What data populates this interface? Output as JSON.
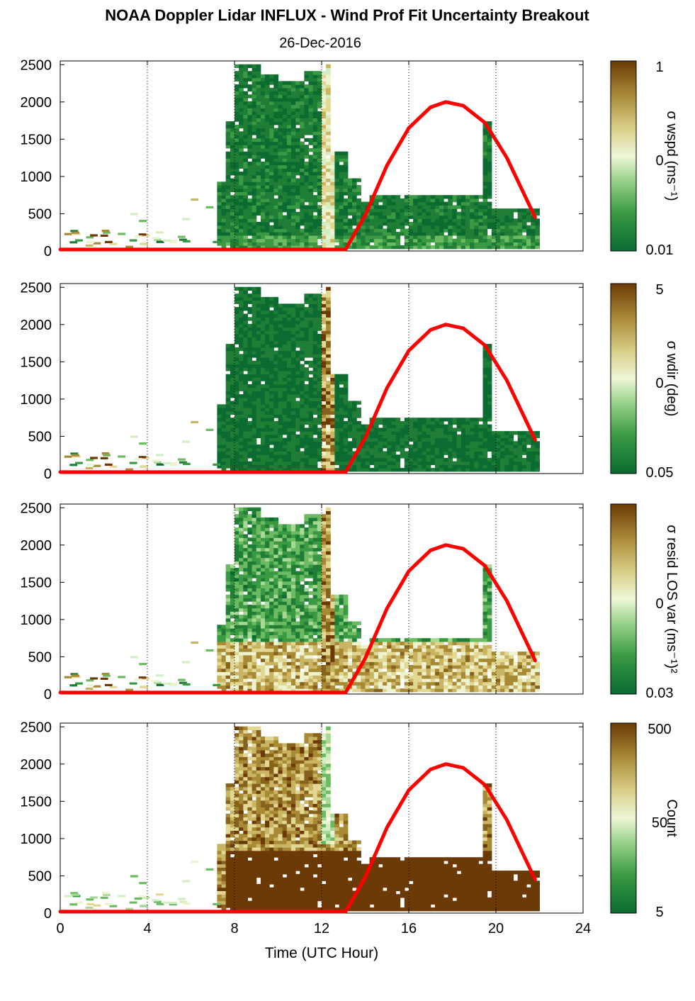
{
  "title": "NOAA Doppler Lidar INFLUX - Wind Prof Fit Uncertainty Breakout",
  "date": "26-Dec-2016",
  "colors": {
    "dark_green": "#0b6b31",
    "mid_green": "#4aa84a",
    "light_green": "#cfeec0",
    "pale": "#eef7d8",
    "tan": "#d5c377",
    "olive": "#a88a35",
    "dark_brown": "#6b3a06",
    "sun_curve": "#ff0000"
  },
  "chart_data": [
    {
      "type": "heatmap",
      "panel": "wspd",
      "xlabel": "",
      "ylabel": "",
      "xlim": [
        0,
        24
      ],
      "ylim": [
        0,
        2550
      ],
      "x_ticks": [
        "0",
        "4",
        "8",
        "12",
        "16",
        "20",
        "24"
      ],
      "y_ticks": [
        "0",
        "500",
        "1000",
        "1500",
        "2000",
        "2500"
      ],
      "colorbar": {
        "label": "σ wspd (ms⁻¹)",
        "ticks": [
          "1",
          "0",
          "0.01"
        ]
      },
      "sun_elevation_curve": {
        "x": [
          0,
          13.1,
          14,
          15,
          16,
          17,
          17.7,
          18.5,
          19.5,
          20.5,
          21.8
        ],
        "y": [
          20,
          20,
          480,
          1150,
          1650,
          1930,
          2000,
          1950,
          1720,
          1250,
          450
        ]
      }
    },
    {
      "type": "heatmap",
      "panel": "wdir",
      "xlabel": "",
      "ylabel": "",
      "xlim": [
        0,
        24
      ],
      "ylim": [
        0,
        2550
      ],
      "x_ticks": [
        "0",
        "4",
        "8",
        "12",
        "16",
        "20",
        "24"
      ],
      "y_ticks": [
        "0",
        "500",
        "1000",
        "1500",
        "2000",
        "2500"
      ],
      "colorbar": {
        "label": "σ wdir (deg)",
        "ticks": [
          "5",
          "0",
          "0.05"
        ]
      },
      "sun_elevation_curve": {
        "x": [
          0,
          13.1,
          14,
          15,
          16,
          17,
          17.7,
          18.5,
          19.5,
          20.5,
          21.8
        ],
        "y": [
          20,
          20,
          480,
          1150,
          1650,
          1930,
          2000,
          1950,
          1720,
          1250,
          450
        ]
      }
    },
    {
      "type": "heatmap",
      "panel": "resid",
      "xlabel": "",
      "ylabel": "",
      "xlim": [
        0,
        24
      ],
      "ylim": [
        0,
        2550
      ],
      "x_ticks": [
        "0",
        "4",
        "8",
        "12",
        "16",
        "20",
        "24"
      ],
      "y_ticks": [
        "0",
        "500",
        "1000",
        "1500",
        "2000",
        "2500"
      ],
      "colorbar": {
        "label": "σ resid LOS var (ms⁻¹)²",
        "ticks": [
          "0",
          "0.03"
        ]
      },
      "sun_elevation_curve": {
        "x": [
          0,
          13.1,
          14,
          15,
          16,
          17,
          17.7,
          18.5,
          19.5,
          20.5,
          21.8
        ],
        "y": [
          20,
          20,
          480,
          1150,
          1650,
          1930,
          2000,
          1950,
          1720,
          1250,
          450
        ]
      }
    },
    {
      "type": "heatmap",
      "panel": "count",
      "xlabel": "Time (UTC Hour)",
      "ylabel": "",
      "xlim": [
        0,
        24
      ],
      "ylim": [
        0,
        2550
      ],
      "x_ticks": [
        "0",
        "4",
        "8",
        "12",
        "16",
        "20",
        "24"
      ],
      "y_ticks": [
        "0",
        "500",
        "1000",
        "1500",
        "2000",
        "2500"
      ],
      "colorbar": {
        "label": "Count",
        "ticks": [
          "500",
          "50",
          "5"
        ]
      },
      "sun_elevation_curve": {
        "x": [
          0,
          13.1,
          14,
          15,
          16,
          17,
          17.7,
          18.5,
          19.5,
          20.5,
          21.8
        ],
        "y": [
          20,
          20,
          480,
          1150,
          1650,
          1930,
          2000,
          1950,
          1720,
          1250,
          450
        ]
      }
    }
  ]
}
